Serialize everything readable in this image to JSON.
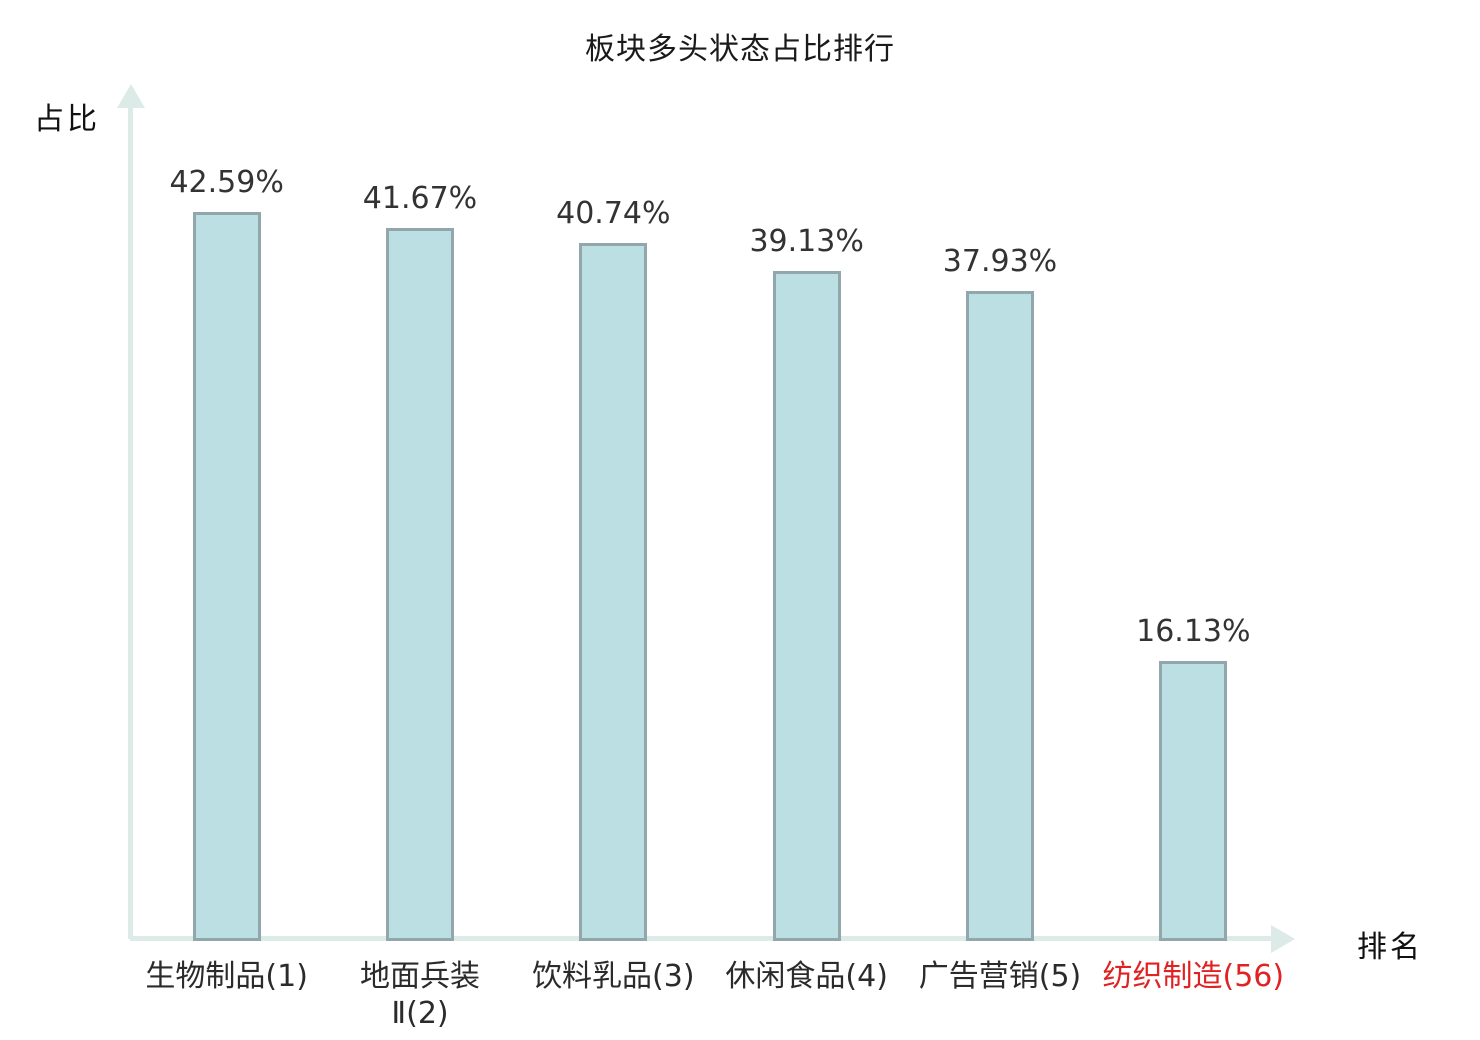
{
  "title": "板块多头状态占比排行",
  "axes": {
    "y_label": "占比",
    "x_label": "排名"
  },
  "colors": {
    "bar_fill": "#bcdfe3",
    "bar_border": "#92a7ab",
    "axis": "#dcebe7",
    "text": "#2b2b2b",
    "value_text": "#333333",
    "highlight": "#e02222"
  },
  "chart_data": {
    "type": "bar",
    "title": "板块多头状态占比排行",
    "xlabel": "排名",
    "ylabel": "占比",
    "categories": [
      "生物制品(1)",
      "地面兵装Ⅱ(2)",
      "饮料乳品(3)",
      "休闲食品(4)",
      "广告营销(5)",
      "纺织制造(56)"
    ],
    "category_lines": [
      [
        "生物制品(1)"
      ],
      [
        "地面兵装",
        "Ⅱ(2)"
      ],
      [
        "饮料乳品(3)"
      ],
      [
        "休闲食品(4)"
      ],
      [
        "广告营销(5)"
      ],
      [
        "纺织制造(56)"
      ]
    ],
    "values": [
      42.59,
      41.67,
      40.74,
      39.13,
      37.93,
      16.13
    ],
    "value_labels": [
      "42.59%",
      "41.67%",
      "40.74%",
      "39.13%",
      "37.93%",
      "16.13%"
    ],
    "highlighted_index": 5,
    "ylim": [
      0,
      45
    ],
    "grid": false,
    "legend": null
  }
}
